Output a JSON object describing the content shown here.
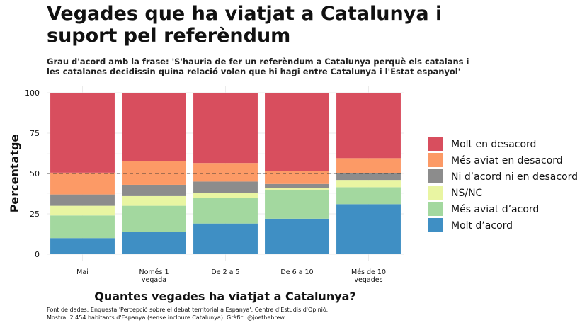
{
  "title": "Vegades que ha viatjat a Catalunya i suport pel referèndum",
  "subtitle": "Grau d'acord amb la frase: 'S'hauria de fer un referèndum a Catalunya perquè els catalans i les catalanes decidissin quina relació volen que hi hagi entre Catalunya i l'Estat espanyol'",
  "caption_line1": "Font de dades: Enquesta 'Percepció sobre el debat territorial a Espanya'. Centre d'Estudis d'Opinió.",
  "caption_line2": "Mostra: 2.454 habitants d'Espanya (sense incloure Catalunya). Gràfic: @joethebrew",
  "chart_data": {
    "type": "bar",
    "stacked": true,
    "xlabel": "Quantes vegades ha viatjat a Catalunya?",
    "ylabel": "Percentatge",
    "ylim": [
      0,
      100
    ],
    "yticks": [
      0,
      25,
      50,
      75,
      100
    ],
    "reference_line": 50,
    "grid": true,
    "legend_position": "right",
    "categories": [
      [
        "Mai"
      ],
      [
        "Només 1",
        "vegada"
      ],
      [
        "De 2 a 5"
      ],
      [
        "De 6 a 10"
      ],
      [
        "Més de 10",
        "vegades"
      ]
    ],
    "series": [
      {
        "name": "Molt d’acord",
        "color": "#3f8fc4",
        "values": [
          10,
          14,
          19,
          22,
          31
        ]
      },
      {
        "name": "Més aviat d’acord",
        "color": "#a3d89f",
        "values": [
          14,
          16,
          16,
          18,
          10.5
        ]
      },
      {
        "name": "NS/NC",
        "color": "#e9f5a2",
        "values": [
          6,
          6,
          3,
          1,
          4.5
        ]
      },
      {
        "name": "Ni d’acord ni en desacord",
        "color": "#8c8c8c",
        "values": [
          7,
          7,
          7,
          2.5,
          4
        ]
      },
      {
        "name": "Més aviat en desacord",
        "color": "#fc9a66",
        "values": [
          13.5,
          14.5,
          11.5,
          8,
          9.5
        ]
      },
      {
        "name": "Molt en desacord",
        "color": "#d84e5e",
        "values": [
          49.5,
          42.5,
          43.5,
          48.5,
          40.5
        ]
      }
    ]
  }
}
